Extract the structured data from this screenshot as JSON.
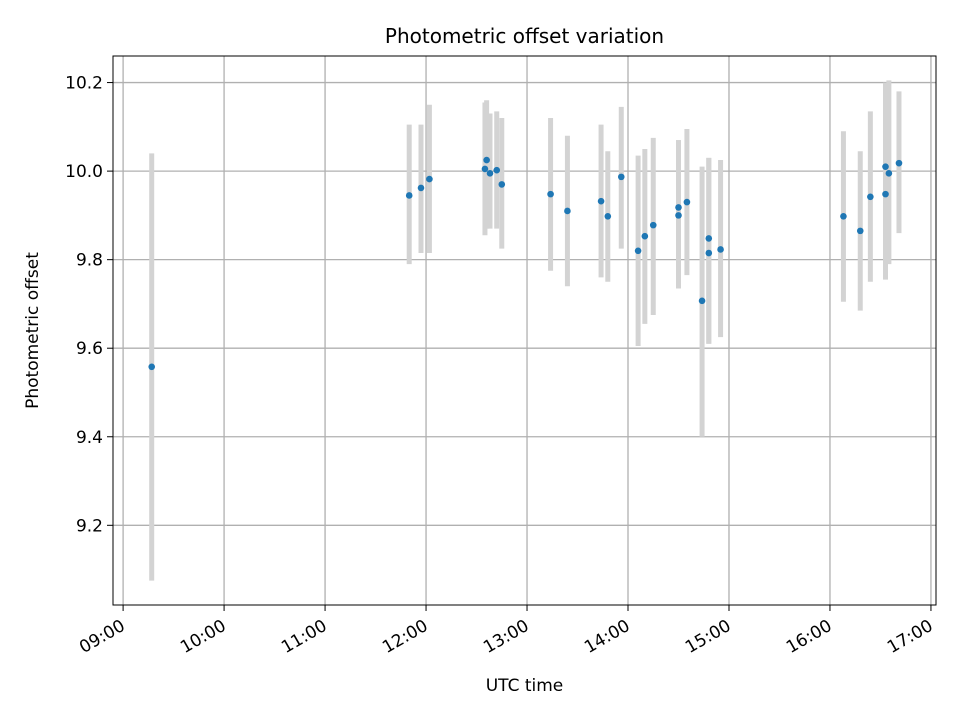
{
  "chart_data": {
    "type": "scatter",
    "title": "Photometric offset variation",
    "xlabel": "UTC time",
    "ylabel": "Photometric offset",
    "x_unit": "UTC time of day (HH:MM)",
    "xlim": [
      "08:54",
      "17:03"
    ],
    "ylim": [
      9.02,
      10.26
    ],
    "x_ticks": [
      "09:00",
      "10:00",
      "11:00",
      "12:00",
      "13:00",
      "14:00",
      "15:00",
      "16:00",
      "17:00"
    ],
    "y_ticks": [
      9.2,
      9.4,
      9.6,
      9.8,
      10.0,
      10.2
    ],
    "grid": true,
    "legend": "none",
    "colors": {
      "points": "#1f77b4",
      "error_bars": "#d3d3d3",
      "grid": "#b0b0b0"
    },
    "series": [
      {
        "points": [
          {
            "x": "09:17",
            "y": 9.558,
            "y_low": 9.075,
            "y_high": 10.04
          },
          {
            "x": "11:50",
            "y": 9.945,
            "y_low": 9.79,
            "y_high": 10.105
          },
          {
            "x": "11:57",
            "y": 9.962,
            "y_low": 9.815,
            "y_high": 10.105
          },
          {
            "x": "12:02",
            "y": 9.982,
            "y_low": 9.815,
            "y_high": 10.15
          },
          {
            "x": "12:35",
            "y": 10.005,
            "y_low": 9.855,
            "y_high": 10.155
          },
          {
            "x": "12:36",
            "y": 10.025,
            "y_low": 9.87,
            "y_high": 10.16
          },
          {
            "x": "12:38",
            "y": 9.995,
            "y_low": 9.87,
            "y_high": 10.13
          },
          {
            "x": "12:42",
            "y": 10.002,
            "y_low": 9.87,
            "y_high": 10.135
          },
          {
            "x": "12:45",
            "y": 9.97,
            "y_low": 9.825,
            "y_high": 10.12
          },
          {
            "x": "13:14",
            "y": 9.948,
            "y_low": 9.775,
            "y_high": 10.12
          },
          {
            "x": "13:24",
            "y": 9.91,
            "y_low": 9.74,
            "y_high": 10.08
          },
          {
            "x": "13:44",
            "y": 9.932,
            "y_low": 9.76,
            "y_high": 10.105
          },
          {
            "x": "13:48",
            "y": 9.898,
            "y_low": 9.75,
            "y_high": 10.045
          },
          {
            "x": "13:56",
            "y": 9.987,
            "y_low": 9.825,
            "y_high": 10.145
          },
          {
            "x": "14:06",
            "y": 9.82,
            "y_low": 9.605,
            "y_high": 10.035
          },
          {
            "x": "14:10",
            "y": 9.853,
            "y_low": 9.655,
            "y_high": 10.05
          },
          {
            "x": "14:15",
            "y": 9.878,
            "y_low": 9.675,
            "y_high": 10.075
          },
          {
            "x": "14:30",
            "y": 9.9,
            "y_low": 9.735,
            "y_high": 10.07
          },
          {
            "x": "14:30",
            "y": 9.918,
            "y_low": 9.735,
            "y_high": 10.07
          },
          {
            "x": "14:35",
            "y": 9.93,
            "y_low": 9.765,
            "y_high": 10.095
          },
          {
            "x": "14:44",
            "y": 9.707,
            "y_low": 9.4,
            "y_high": 10.01
          },
          {
            "x": "14:48",
            "y": 9.848,
            "y_low": 9.61,
            "y_high": 10.03
          },
          {
            "x": "14:48",
            "y": 9.815,
            "y_low": 9.61,
            "y_high": 10.03
          },
          {
            "x": "14:55",
            "y": 9.823,
            "y_low": 9.625,
            "y_high": 10.025
          },
          {
            "x": "16:08",
            "y": 9.898,
            "y_low": 9.705,
            "y_high": 10.09
          },
          {
            "x": "16:18",
            "y": 9.865,
            "y_low": 9.685,
            "y_high": 10.045
          },
          {
            "x": "16:24",
            "y": 9.942,
            "y_low": 9.75,
            "y_high": 10.135
          },
          {
            "x": "16:33",
            "y": 9.948,
            "y_low": 9.755,
            "y_high": 10.14
          },
          {
            "x": "16:33",
            "y": 10.01,
            "y_low": 9.785,
            "y_high": 10.2
          },
          {
            "x": "16:35",
            "y": 9.995,
            "y_low": 9.79,
            "y_high": 10.205
          },
          {
            "x": "16:41",
            "y": 10.018,
            "y_low": 9.86,
            "y_high": 10.18
          }
        ]
      }
    ]
  }
}
